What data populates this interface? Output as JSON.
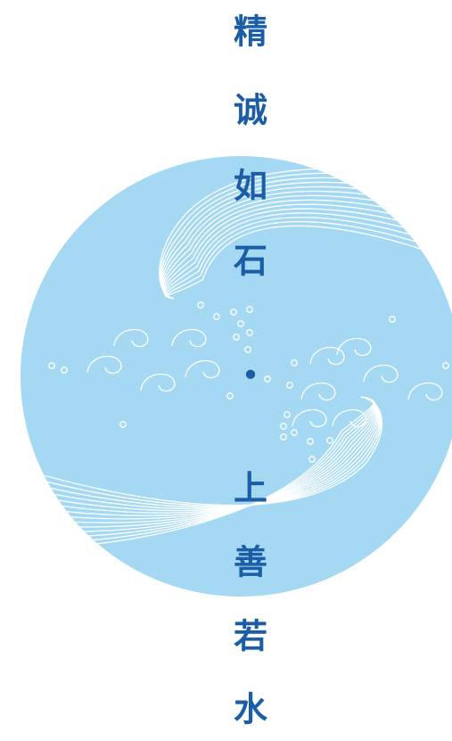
{
  "poster": {
    "characters": [
      "精",
      "诚",
      "如",
      "石",
      "•",
      "上",
      "善",
      "若",
      "水"
    ]
  }
}
